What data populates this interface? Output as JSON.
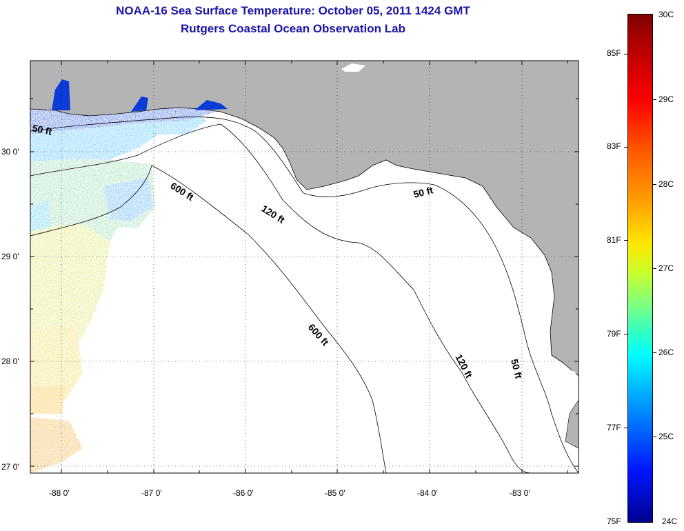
{
  "title": {
    "line1": "NOAA-16 Sea Surface Temperature:  October 05, 2011 1424 GMT",
    "line2": "Rutgers Coastal Ocean Observation Lab"
  },
  "map": {
    "longitude_labels": [
      "-88 0'",
      "-87 0'",
      "-86 0'",
      "-85 0'",
      "-84 0'",
      "-83 0'"
    ],
    "latitude_labels": [
      "30 0'",
      "29 0'",
      "28 0'",
      "27 0'"
    ],
    "contour_labels": {
      "c50_west": "50 ft",
      "c600_north": "600 ft",
      "c120_north": "120 ft",
      "c50_east": "50 ft",
      "c600_south": "600 ft",
      "c120_south": "120 ft",
      "c50_south": "50 ft"
    },
    "colors": {
      "land": "#b4b4b4",
      "ocean_no_data": "#ffffff",
      "contour": "#000000"
    }
  },
  "colorbar": {
    "celsius_labels": [
      "30C",
      "29C",
      "28C",
      "27C",
      "26C",
      "25C",
      "24C"
    ],
    "fahrenheit_labels": [
      "85F",
      "83F",
      "81F",
      "79F",
      "77F",
      "75F"
    ],
    "range_celsius": [
      24,
      30
    ],
    "colormap": "jet"
  }
}
